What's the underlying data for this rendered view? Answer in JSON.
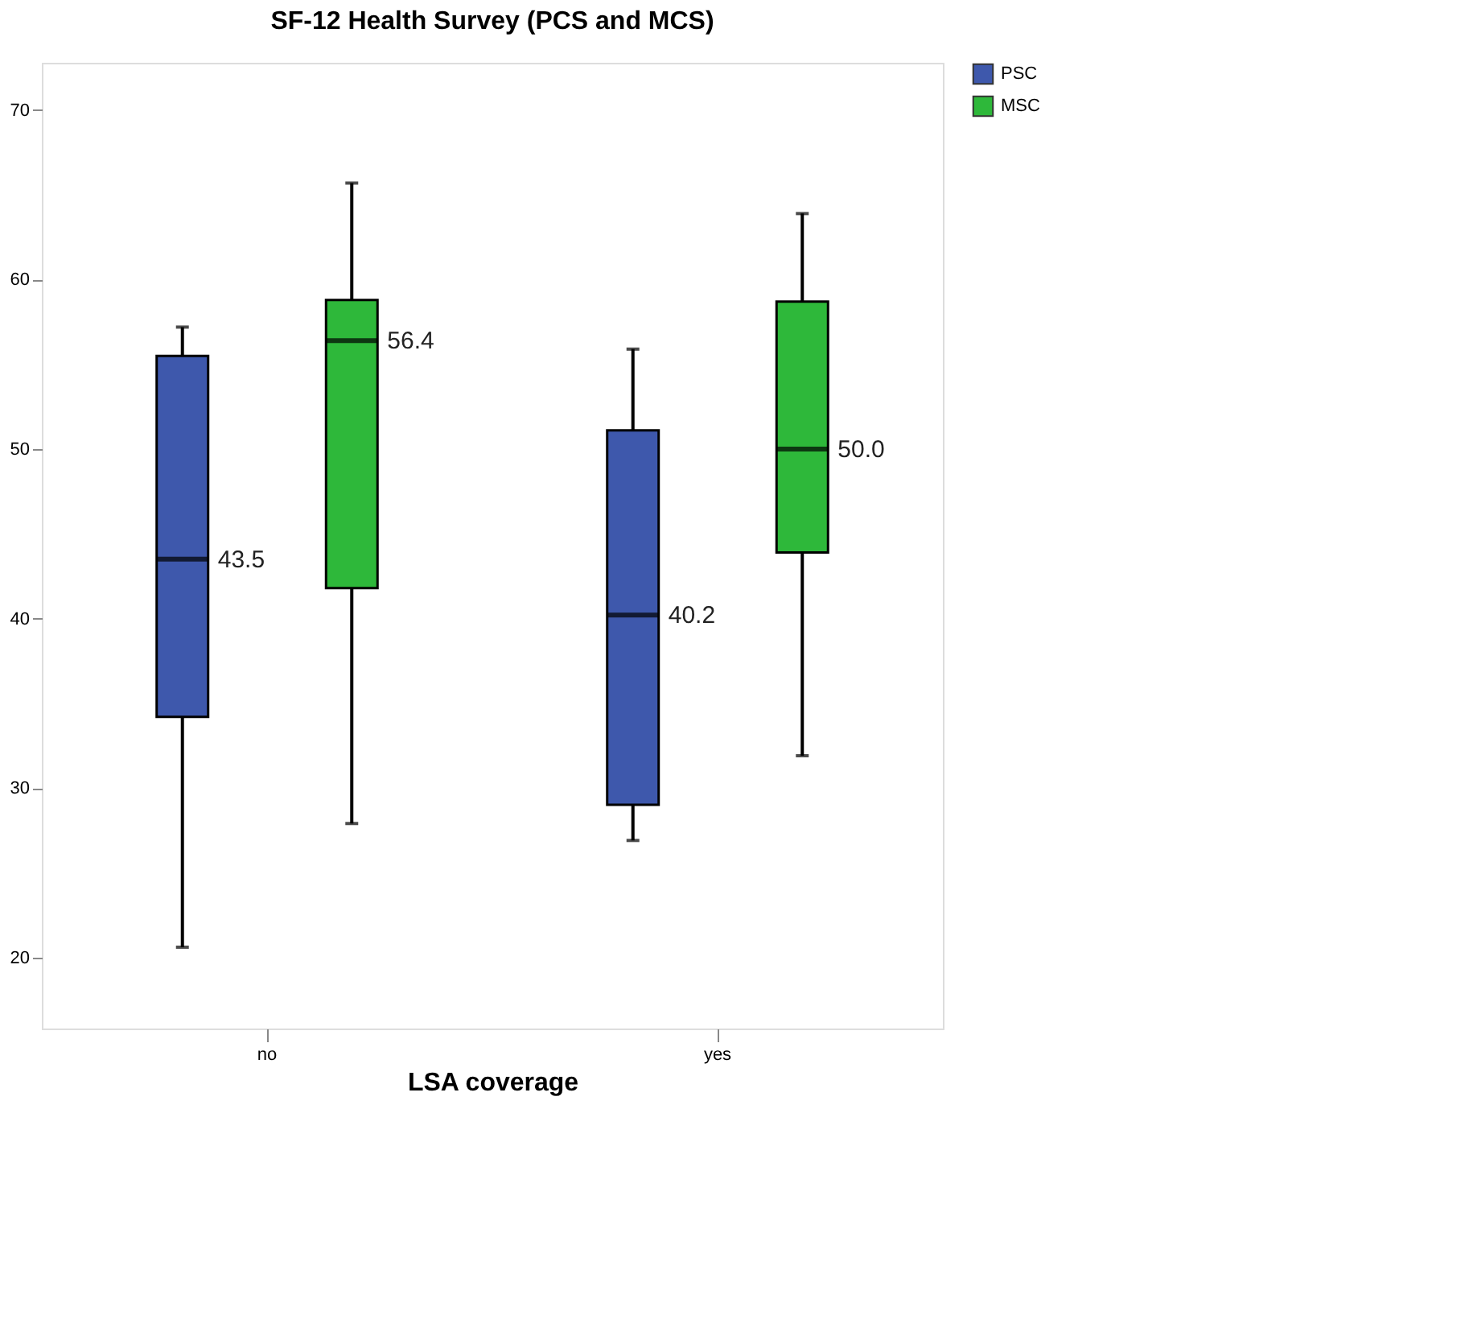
{
  "chart_data": {
    "type": "box",
    "title": "SF-12 Health Survey (PCS and MCS)",
    "xlabel": "LSA coverage",
    "categories": [
      "no",
      "yes"
    ],
    "series": [
      {
        "name": "PSC",
        "color": "#3e58ac",
        "boxes": [
          {
            "low": 20.6,
            "q1": 34.2,
            "median": 43.5,
            "q3": 55.5,
            "high": 57.2
          },
          {
            "low": 26.9,
            "q1": 29.0,
            "median": 40.2,
            "q3": 51.1,
            "high": 55.9
          }
        ],
        "value_labels": [
          "43.5",
          "40.2"
        ]
      },
      {
        "name": "MSC",
        "color": "#2eb83a",
        "boxes": [
          {
            "low": 27.9,
            "q1": 41.8,
            "median": 56.4,
            "q3": 58.8,
            "high": 65.7
          },
          {
            "low": 31.9,
            "q1": 43.9,
            "median": 50.0,
            "q3": 58.7,
            "high": 63.9
          }
        ],
        "value_labels": [
          "56.4",
          "50.0"
        ]
      }
    ],
    "ylim": [
      15.8,
      72.8
    ],
    "yticks": [
      20,
      30,
      40,
      50,
      60,
      70
    ],
    "grid": false,
    "legend": "top right"
  }
}
